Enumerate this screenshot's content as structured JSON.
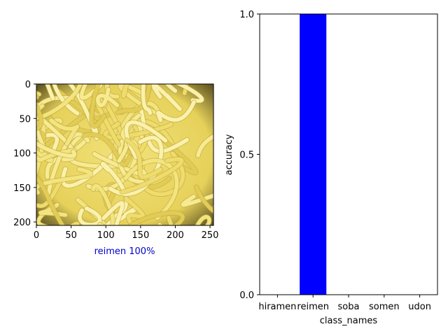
{
  "image_panel": {
    "caption": "reimen 100%",
    "caption_color": "#0000cc",
    "x_ticks": [
      "0",
      "50",
      "100",
      "150",
      "200",
      "250"
    ],
    "y_ticks": [
      "0",
      "50",
      "100",
      "150",
      "200"
    ],
    "image_description": "yellow noodles"
  },
  "chart_data": {
    "type": "bar",
    "categories": [
      "hiramen",
      "reimen",
      "soba",
      "somen",
      "udon"
    ],
    "values": [
      0.0,
      1.0,
      0.0,
      0.0,
      0.0
    ],
    "title": "",
    "xlabel": "class_names",
    "ylabel": "accuracy",
    "ylim": [
      0,
      1
    ],
    "y_ticks": [
      "0.0",
      "0.5",
      "1.0"
    ],
    "bar_color": "#0000ff",
    "grid": false
  }
}
